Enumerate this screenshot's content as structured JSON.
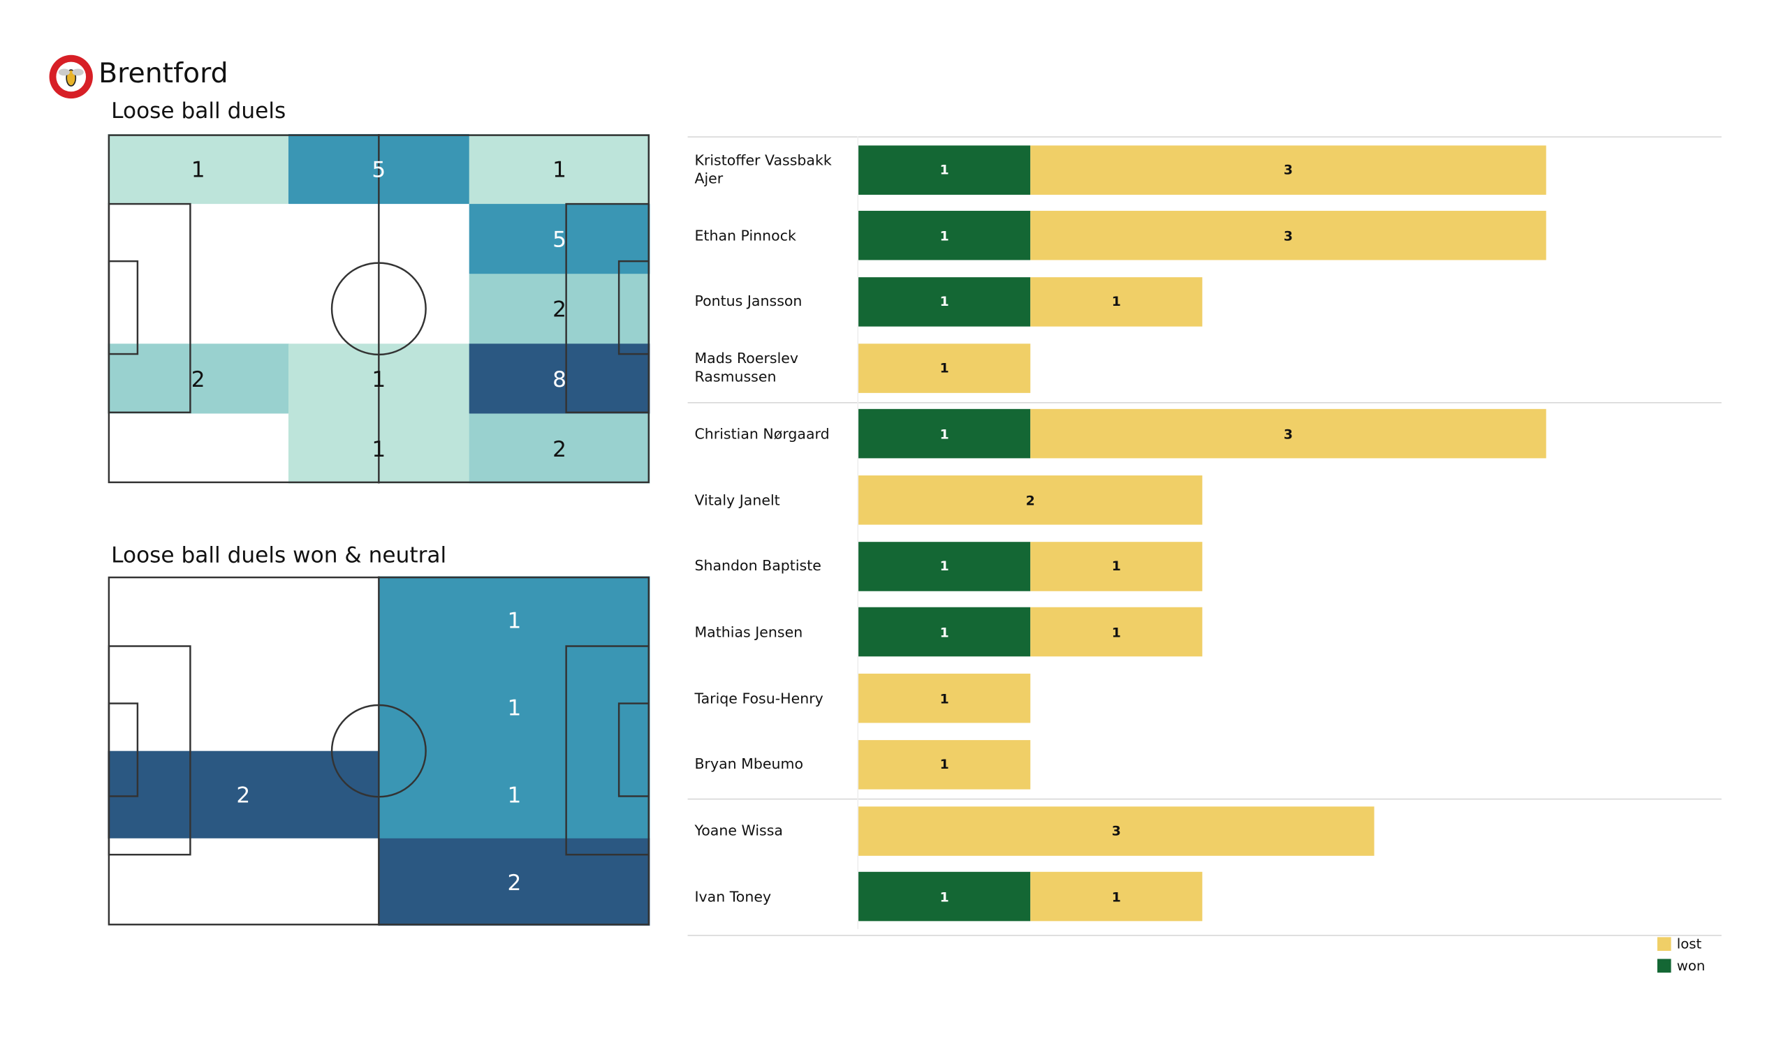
{
  "header": {
    "team": "Brentford"
  },
  "colors": {
    "won": "#146734",
    "lost": "#f0cf67",
    "heat": [
      "#ffffff",
      "#bde4da",
      "#99d1cf",
      "#3a96b4",
      "#2b5882"
    ]
  },
  "chart_data": [
    {
      "type": "heatmap",
      "title": "Loose ball duels",
      "grid_rows": 5,
      "grid_cols": 3,
      "values": [
        [
          1,
          5,
          1
        ],
        [
          0,
          0,
          5
        ],
        [
          0,
          0,
          2
        ],
        [
          2,
          1,
          8
        ],
        [
          0,
          1,
          2
        ]
      ]
    },
    {
      "type": "heatmap",
      "title": "Loose ball duels won & neutral",
      "grid_rows": 4,
      "grid_cols": 2,
      "values": [
        [
          0,
          1
        ],
        [
          0,
          1
        ],
        [
          2,
          1
        ],
        [
          0,
          2
        ]
      ]
    },
    {
      "type": "bar",
      "orientation": "horizontal-stacked",
      "players": [
        "Kristoffer Vassbakk Ajer",
        "Ethan Pinnock",
        "Pontus Jansson",
        "Mads Roerslev Rasmussen",
        "Christian Nørgaard",
        "Vitaly Janelt",
        "Shandon Baptiste",
        "Mathias Jensen",
        "Tariqe Fosu-Henry",
        "Bryan Mbeumo",
        "Yoane Wissa",
        "Ivan Toney"
      ],
      "series": [
        {
          "name": "won",
          "values": [
            1,
            1,
            1,
            0,
            1,
            0,
            1,
            1,
            0,
            0,
            0,
            1
          ]
        },
        {
          "name": "lost",
          "values": [
            3,
            3,
            1,
            1,
            3,
            2,
            1,
            1,
            1,
            1,
            3,
            1
          ]
        }
      ],
      "group_breaks_after": [
        3,
        9
      ],
      "legend": [
        "lost",
        "won"
      ],
      "legend_position": "bottom-right"
    }
  ]
}
